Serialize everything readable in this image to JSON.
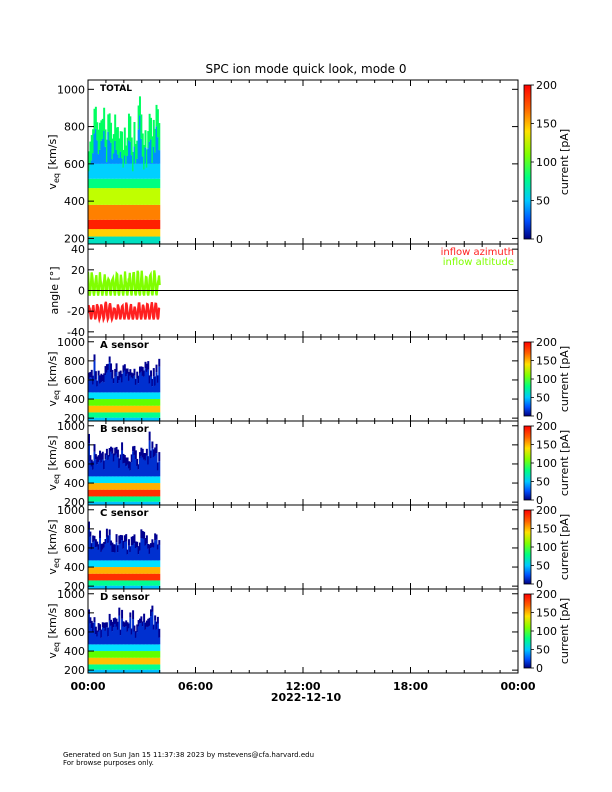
{
  "figure": {
    "title": "SPC ion mode quick look, mode 0",
    "date_label": "2022-12-10",
    "time_ticks": [
      "00:00",
      "06:00",
      "12:00",
      "18:00",
      "00:00"
    ],
    "footer_line1": "Generated on Sun Jan 15 11:37:38 2023 by mstevens@cfa.harvard.edu",
    "footer_line2": "For browse purposes only."
  },
  "chart_data": [
    {
      "type": "heatmap",
      "panel_label": "TOTAL",
      "ylabel_main": "v",
      "ylabel_sub": "eq",
      "ylabel_unit": "[km/s]",
      "ylim": [
        170,
        1050
      ],
      "yticks": [
        200,
        400,
        600,
        800,
        1000
      ],
      "xlim_hours": [
        0,
        24
      ],
      "data_span_hours": [
        0,
        4
      ],
      "colorbar": {
        "label": "current [pA]",
        "range": [
          0,
          200
        ],
        "ticks": [
          0,
          50,
          100,
          150,
          200
        ]
      },
      "colors": {
        "min": "#000080",
        "low": "#00b0ff",
        "mid": "#00ff60",
        "high": "#ffe000",
        "max": "#ff0000"
      }
    },
    {
      "type": "line",
      "ylabel": "angle [°]",
      "ylim": [
        -45,
        45
      ],
      "yticks": [
        -40,
        -20,
        0,
        20,
        40
      ],
      "xlim_hours": [
        0,
        24
      ],
      "data_span_hours": [
        0,
        4
      ],
      "series": [
        {
          "name": "inflow azimuth",
          "color": "#ff2020",
          "approx_range": [
            -28,
            -10
          ]
        },
        {
          "name": "inflow altitude",
          "color": "#80ff00",
          "approx_range": [
            -5,
            20
          ]
        }
      ],
      "reference_line": 0
    },
    {
      "type": "heatmap",
      "panel_label": "A sensor",
      "ylabel_main": "v",
      "ylabel_sub": "eq",
      "ylabel_unit": "[km/s]",
      "ylim": [
        170,
        1050
      ],
      "yticks": [
        200,
        400,
        600,
        800,
        1000
      ],
      "xlim_hours": [
        0,
        24
      ],
      "data_span_hours": [
        0,
        4
      ],
      "colorbar": {
        "label": "current [pA]",
        "range": [
          0,
          200
        ],
        "ticks": [
          0,
          50,
          100,
          150,
          200
        ]
      }
    },
    {
      "type": "heatmap",
      "panel_label": "B sensor",
      "ylabel_main": "v",
      "ylabel_sub": "eq",
      "ylabel_unit": "[km/s]",
      "ylim": [
        170,
        1050
      ],
      "yticks": [
        200,
        400,
        600,
        800,
        1000
      ],
      "xlim_hours": [
        0,
        24
      ],
      "data_span_hours": [
        0,
        4
      ],
      "colorbar": {
        "label": "current [pA]",
        "range": [
          0,
          200
        ],
        "ticks": [
          0,
          50,
          100,
          150,
          200
        ]
      }
    },
    {
      "type": "heatmap",
      "panel_label": "C sensor",
      "ylabel_main": "v",
      "ylabel_sub": "eq",
      "ylabel_unit": "[km/s]",
      "ylim": [
        170,
        1050
      ],
      "yticks": [
        200,
        400,
        600,
        800,
        1000
      ],
      "xlim_hours": [
        0,
        24
      ],
      "data_span_hours": [
        0,
        4
      ],
      "colorbar": {
        "label": "current [pA]",
        "range": [
          0,
          200
        ],
        "ticks": [
          0,
          50,
          100,
          150,
          200
        ]
      }
    },
    {
      "type": "heatmap",
      "panel_label": "D sensor",
      "ylabel_main": "v",
      "ylabel_sub": "eq",
      "ylabel_unit": "[km/s]",
      "ylim": [
        170,
        1050
      ],
      "yticks": [
        200,
        400,
        600,
        800,
        1000
      ],
      "xlim_hours": [
        0,
        24
      ],
      "data_span_hours": [
        0,
        4
      ],
      "colorbar": {
        "label": "current [pA]",
        "range": [
          0,
          200
        ],
        "ticks": [
          0,
          50,
          100,
          150,
          200
        ]
      }
    }
  ]
}
